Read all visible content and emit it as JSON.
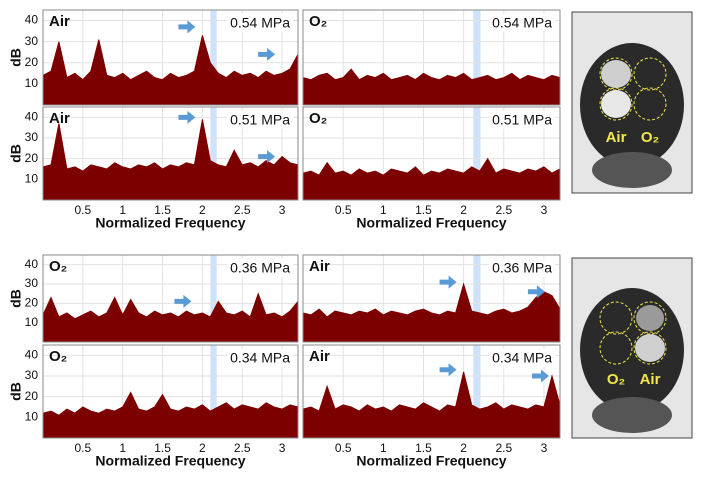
{
  "chart_data": [
    {
      "type": "area",
      "label": "Air",
      "annotation": "0.54 MPa",
      "ylabel": "dB",
      "show_xtick_labels": false,
      "x": [
        0,
        0.1,
        0.2,
        0.3,
        0.4,
        0.5,
        0.6,
        0.7,
        0.8,
        0.9,
        1,
        1.1,
        1.2,
        1.3,
        1.4,
        1.5,
        1.6,
        1.7,
        1.8,
        1.9,
        2,
        2.1,
        2.2,
        2.3,
        2.4,
        2.5,
        2.6,
        2.7,
        2.8,
        2.9,
        3,
        3.1,
        3.2
      ],
      "values": [
        14,
        16,
        30,
        13,
        15,
        12,
        16,
        31,
        14,
        13,
        15,
        12,
        14,
        16,
        13,
        12,
        15,
        13,
        14,
        16,
        33,
        20,
        15,
        13,
        16,
        14,
        15,
        13,
        16,
        14,
        15,
        17,
        24
      ],
      "color": "#7d0000",
      "xlim": [
        0,
        3.2
      ],
      "ylim": [
        0,
        45
      ],
      "xticks": [
        0.5,
        1,
        1.5,
        2,
        2.5,
        3
      ],
      "yticks": [
        10,
        20,
        30,
        40
      ],
      "grid": true,
      "highlight": [
        2.1,
        2.18
      ],
      "highlight_color": "#cfe2fb"
    },
    {
      "type": "area",
      "label": "O₂",
      "annotation": "0.54 MPa",
      "show_xtick_labels": false,
      "x": [
        0,
        0.1,
        0.2,
        0.3,
        0.4,
        0.5,
        0.6,
        0.7,
        0.8,
        0.9,
        1,
        1.1,
        1.2,
        1.3,
        1.4,
        1.5,
        1.6,
        1.7,
        1.8,
        1.9,
        2,
        2.1,
        2.2,
        2.3,
        2.4,
        2.5,
        2.6,
        2.7,
        2.8,
        2.9,
        3,
        3.1,
        3.2
      ],
      "values": [
        13,
        12,
        14,
        15,
        12,
        13,
        17,
        12,
        14,
        13,
        15,
        12,
        13,
        14,
        12,
        15,
        13,
        12,
        14,
        13,
        15,
        12,
        13,
        14,
        12,
        13,
        15,
        12,
        14,
        13,
        12,
        14,
        13
      ],
      "color": "#7d0000",
      "xlim": [
        0,
        3.2
      ],
      "ylim": [
        0,
        45
      ],
      "xticks": [
        0.5,
        1,
        1.5,
        2,
        2.5,
        3
      ],
      "grid": true,
      "highlight": [
        2.12,
        2.21
      ],
      "highlight_color": "#cfe2fb"
    },
    {
      "type": "area",
      "label": "Air",
      "annotation": "0.51 MPa",
      "ylabel": "dB",
      "xlabel": "Normalized Frequency",
      "show_xtick_labels": true,
      "x": [
        0,
        0.1,
        0.2,
        0.3,
        0.4,
        0.5,
        0.6,
        0.7,
        0.8,
        0.9,
        1,
        1.1,
        1.2,
        1.3,
        1.4,
        1.5,
        1.6,
        1.7,
        1.8,
        1.9,
        2,
        2.1,
        2.2,
        2.3,
        2.4,
        2.5,
        2.6,
        2.7,
        2.8,
        2.9,
        3,
        3.1,
        3.2
      ],
      "values": [
        16,
        17,
        37,
        15,
        16,
        14,
        17,
        16,
        15,
        18,
        16,
        15,
        17,
        16,
        18,
        15,
        17,
        16,
        18,
        17,
        39,
        19,
        17,
        16,
        24,
        17,
        18,
        16,
        19,
        17,
        21,
        18,
        17
      ],
      "color": "#7d0000",
      "xlim": [
        0,
        3.2
      ],
      "ylim": [
        0,
        45
      ],
      "xticks": [
        0.5,
        1,
        1.5,
        2,
        2.5,
        3
      ],
      "yticks": [
        10,
        20,
        30,
        40
      ],
      "grid": true,
      "highlight": [
        2.1,
        2.18
      ],
      "highlight_color": "#cfe2fb"
    },
    {
      "type": "area",
      "label": "O₂",
      "annotation": "0.51 MPa",
      "xlabel": "Normalized Frequency",
      "show_xtick_labels": true,
      "x": [
        0,
        0.1,
        0.2,
        0.3,
        0.4,
        0.5,
        0.6,
        0.7,
        0.8,
        0.9,
        1,
        1.1,
        1.2,
        1.3,
        1.4,
        1.5,
        1.6,
        1.7,
        1.8,
        1.9,
        2,
        2.1,
        2.2,
        2.3,
        2.4,
        2.5,
        2.6,
        2.7,
        2.8,
        2.9,
        3,
        3.1,
        3.2
      ],
      "values": [
        13,
        14,
        12,
        18,
        13,
        14,
        12,
        15,
        13,
        14,
        12,
        15,
        14,
        13,
        16,
        12,
        14,
        13,
        15,
        14,
        13,
        16,
        14,
        20,
        13,
        15,
        14,
        13,
        15,
        14,
        16,
        13,
        15
      ],
      "color": "#7d0000",
      "xlim": [
        0,
        3.2
      ],
      "ylim": [
        0,
        45
      ],
      "xticks": [
        0.5,
        1,
        1.5,
        2,
        2.5,
        3
      ],
      "grid": true,
      "highlight": [
        2.12,
        2.21
      ],
      "highlight_color": "#cfe2fb"
    },
    {
      "type": "area",
      "label": "O₂",
      "annotation": "0.36 MPa",
      "ylabel": "dB",
      "show_xtick_labels": false,
      "x": [
        0,
        0.1,
        0.2,
        0.3,
        0.4,
        0.5,
        0.6,
        0.7,
        0.8,
        0.9,
        1,
        1.1,
        1.2,
        1.3,
        1.4,
        1.5,
        1.6,
        1.7,
        1.8,
        1.9,
        2,
        2.1,
        2.2,
        2.3,
        2.4,
        2.5,
        2.6,
        2.7,
        2.8,
        2.9,
        3,
        3.1,
        3.2
      ],
      "values": [
        14,
        23,
        13,
        15,
        12,
        14,
        16,
        13,
        15,
        23,
        14,
        22,
        15,
        13,
        16,
        14,
        15,
        13,
        16,
        14,
        15,
        13,
        21,
        15,
        14,
        16,
        13,
        25,
        14,
        15,
        13,
        16,
        21
      ],
      "color": "#7d0000",
      "xlim": [
        0,
        3.2
      ],
      "ylim": [
        0,
        45
      ],
      "xticks": [
        0.5,
        1,
        1.5,
        2,
        2.5,
        3
      ],
      "yticks": [
        10,
        20,
        30,
        40
      ],
      "grid": true,
      "highlight": [
        2.1,
        2.18
      ],
      "highlight_color": "#cfe2fb"
    },
    {
      "type": "area",
      "label": "Air",
      "annotation": "0.36 MPa",
      "show_xtick_labels": false,
      "x": [
        0,
        0.1,
        0.2,
        0.3,
        0.4,
        0.5,
        0.6,
        0.7,
        0.8,
        0.9,
        1,
        1.1,
        1.2,
        1.3,
        1.4,
        1.5,
        1.6,
        1.7,
        1.8,
        1.9,
        2,
        2.1,
        2.2,
        2.3,
        2.4,
        2.5,
        2.6,
        2.7,
        2.8,
        2.9,
        3,
        3.1,
        3.2
      ],
      "values": [
        15,
        14,
        17,
        13,
        16,
        15,
        14,
        16,
        15,
        17,
        14,
        16,
        15,
        14,
        16,
        17,
        15,
        14,
        16,
        15,
        30,
        16,
        15,
        14,
        16,
        17,
        15,
        16,
        18,
        23,
        26,
        24,
        17
      ],
      "color": "#7d0000",
      "xlim": [
        0,
        3.2
      ],
      "ylim": [
        0,
        45
      ],
      "xticks": [
        0.5,
        1,
        1.5,
        2,
        2.5,
        3
      ],
      "grid": true,
      "highlight": [
        2.12,
        2.21
      ],
      "highlight_color": "#cfe2fb"
    },
    {
      "type": "area",
      "label": "O₂",
      "annotation": "0.34 MPa",
      "ylabel": "dB",
      "xlabel": "Normalized Frequency",
      "show_xtick_labels": true,
      "x": [
        0,
        0.1,
        0.2,
        0.3,
        0.4,
        0.5,
        0.6,
        0.7,
        0.8,
        0.9,
        1,
        1.1,
        1.2,
        1.3,
        1.4,
        1.5,
        1.6,
        1.7,
        1.8,
        1.9,
        2,
        2.1,
        2.2,
        2.3,
        2.4,
        2.5,
        2.6,
        2.7,
        2.8,
        2.9,
        3,
        3.1,
        3.2
      ],
      "values": [
        12,
        13,
        11,
        14,
        12,
        15,
        13,
        12,
        14,
        13,
        15,
        22,
        14,
        13,
        15,
        21,
        14,
        13,
        15,
        14,
        16,
        13,
        15,
        17,
        14,
        16,
        15,
        14,
        17,
        15,
        14,
        16,
        15
      ],
      "color": "#7d0000",
      "xlim": [
        0,
        3.2
      ],
      "ylim": [
        0,
        45
      ],
      "xticks": [
        0.5,
        1,
        1.5,
        2,
        2.5,
        3
      ],
      "yticks": [
        10,
        20,
        30,
        40
      ],
      "grid": true,
      "highlight": [
        2.1,
        2.18
      ],
      "highlight_color": "#cfe2fb"
    },
    {
      "type": "area",
      "label": "Air",
      "annotation": "0.34 MPa",
      "xlabel": "Normalized Frequency",
      "show_xtick_labels": true,
      "x": [
        0,
        0.1,
        0.2,
        0.3,
        0.4,
        0.5,
        0.6,
        0.7,
        0.8,
        0.9,
        1,
        1.1,
        1.2,
        1.3,
        1.4,
        1.5,
        1.6,
        1.7,
        1.8,
        1.9,
        2,
        2.1,
        2.2,
        2.3,
        2.4,
        2.5,
        2.6,
        2.7,
        2.8,
        2.9,
        3,
        3.1,
        3.2
      ],
      "values": [
        14,
        15,
        13,
        25,
        14,
        16,
        15,
        13,
        16,
        14,
        15,
        13,
        16,
        15,
        14,
        17,
        15,
        13,
        16,
        15,
        32,
        16,
        14,
        15,
        17,
        14,
        16,
        15,
        14,
        16,
        15,
        30,
        16
      ],
      "color": "#7d0000",
      "xlim": [
        0,
        3.2
      ],
      "ylim": [
        0,
        45
      ],
      "xticks": [
        0.5,
        1,
        1.5,
        2,
        2.5,
        3
      ],
      "grid": true,
      "highlight": [
        2.12,
        2.21
      ],
      "highlight_color": "#cfe2fb"
    }
  ],
  "images": [
    {
      "labels": [
        "Air",
        "O₂"
      ]
    },
    {
      "labels": [
        "O₂",
        "Air"
      ]
    }
  ]
}
